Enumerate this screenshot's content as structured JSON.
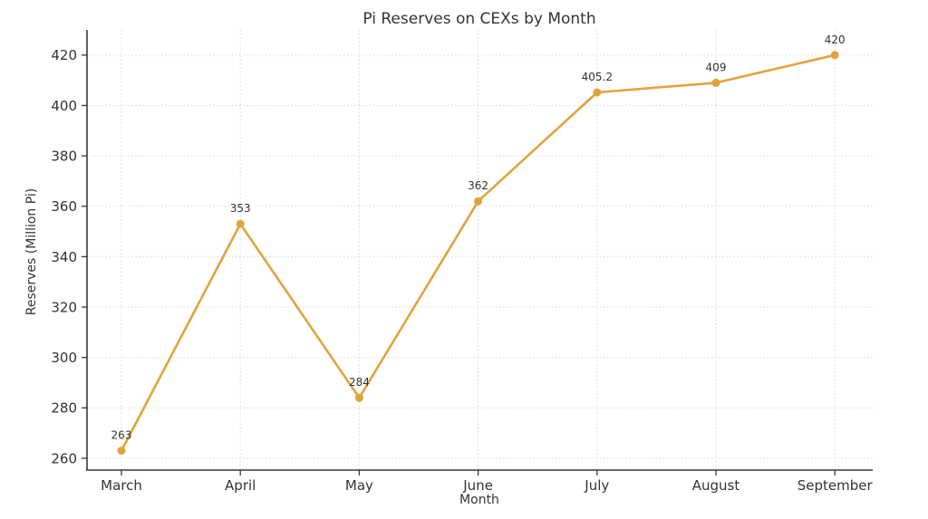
{
  "chart_data": {
    "type": "line",
    "title": "Pi Reserves on CEXs by Month",
    "xlabel": "Month",
    "ylabel": "Reserves (Million Pi)",
    "categories": [
      "March",
      "April",
      "May",
      "June",
      "July",
      "August",
      "September"
    ],
    "series": [
      {
        "name": "Pi Reserves",
        "values": [
          263,
          353,
          284,
          362,
          405.2,
          409,
          420
        ],
        "point_labels": [
          "263",
          "353",
          "284",
          "362",
          "405.2",
          "409",
          "420"
        ],
        "color": "#e3a23c"
      }
    ],
    "yticks": [
      260,
      280,
      300,
      320,
      340,
      360,
      380,
      400,
      420
    ],
    "ylim": [
      255.3,
      430.0
    ],
    "grid": {
      "show": true,
      "style": "dotted",
      "color": "#d6d6d6"
    },
    "legend_position": "none",
    "axis_color": "#3a3a3a",
    "text_color": "#333333",
    "background_color": "#ffffff"
  }
}
